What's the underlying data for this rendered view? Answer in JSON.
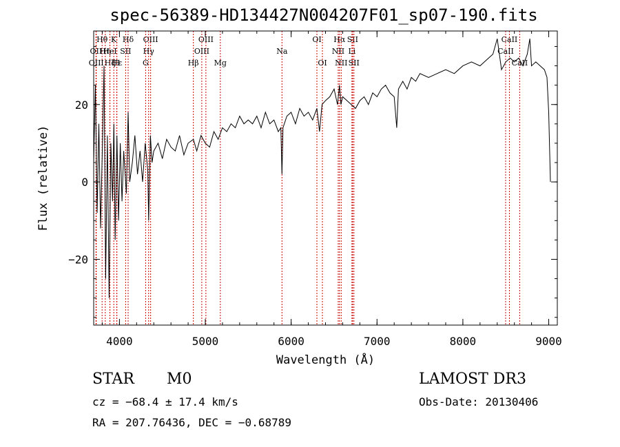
{
  "title": "spec-56389-HD134427N004207F01_sp07-190.fits",
  "info": {
    "object_class": "STAR",
    "subclass": "M0",
    "survey": "LAMOST DR3",
    "redshift": "cz = −68.4 ± 17.4 km/s",
    "obs_date": "Obs-Date: 20130406",
    "coords": "RA = 207.76436, DEC =  −0.68789"
  },
  "colors": {
    "spectrum": "#000000",
    "line_marker": "#cc0000",
    "axis": "#000000"
  },
  "chart_data": {
    "type": "line",
    "title": "spec-56389-HD134427N004207F01_sp07-190.fits",
    "xlabel": "Wavelength (Å)",
    "ylabel": "Flux (relative)",
    "xlim": [
      3700,
      9100
    ],
    "ylim": [
      -37,
      39
    ],
    "xticks": [
      4000,
      5000,
      6000,
      7000,
      8000,
      9000
    ],
    "yticks": [
      -20,
      0,
      20
    ],
    "ytick_labels": [
      "−20",
      "0",
      "20"
    ],
    "series": [
      {
        "name": "flux",
        "x": [
          3700,
          3720,
          3740,
          3760,
          3780,
          3800,
          3820,
          3840,
          3860,
          3880,
          3900,
          3920,
          3935,
          3950,
          3970,
          3990,
          4010,
          4030,
          4050,
          4080,
          4101,
          4120,
          4150,
          4180,
          4210,
          4240,
          4270,
          4300,
          4330,
          4340,
          4360,
          4380,
          4400,
          4450,
          4500,
          4550,
          4600,
          4650,
          4700,
          4750,
          4800,
          4861,
          4900,
          4950,
          5000,
          5050,
          5100,
          5150,
          5200,
          5250,
          5300,
          5350,
          5400,
          5450,
          5500,
          5550,
          5600,
          5650,
          5700,
          5750,
          5800,
          5850,
          5880,
          5893,
          5905,
          5950,
          6000,
          6050,
          6100,
          6150,
          6200,
          6250,
          6300,
          6330,
          6360,
          6400,
          6450,
          6500,
          6540,
          6563,
          6580,
          6600,
          6650,
          6700,
          6750,
          6800,
          6850,
          6900,
          6950,
          7000,
          7050,
          7100,
          7150,
          7200,
          7230,
          7250,
          7300,
          7350,
          7400,
          7450,
          7500,
          7600,
          7700,
          7800,
          7900,
          8000,
          8100,
          8200,
          8300,
          8350,
          8400,
          8450,
          8500,
          8550,
          8600,
          8650,
          8700,
          8750,
          8780,
          8800,
          8850,
          8900,
          8950,
          8980,
          9000,
          9020
        ],
        "values": [
          5,
          25,
          -8,
          15,
          -12,
          8,
          30,
          -25,
          12,
          -30,
          10,
          -5,
          15,
          -15,
          12,
          -10,
          10,
          -5,
          8,
          -3,
          18,
          0,
          5,
          12,
          2,
          8,
          0,
          10,
          3,
          -10,
          12,
          5,
          8,
          10,
          6,
          11,
          9,
          8,
          12,
          7,
          10,
          11,
          8,
          12,
          10,
          9,
          13,
          11,
          14,
          13,
          15,
          14,
          17,
          15,
          16,
          15,
          17,
          14,
          18,
          15,
          16,
          13,
          14,
          2,
          14,
          17,
          18,
          15,
          19,
          17,
          18,
          16,
          19,
          13,
          20,
          21,
          22,
          24,
          20,
          25,
          20,
          22,
          21,
          20,
          19,
          21,
          22,
          20,
          23,
          22,
          24,
          25,
          23,
          22,
          14,
          24,
          26,
          24,
          27,
          26,
          28,
          27,
          28,
          29,
          28,
          30,
          31,
          30,
          32,
          33,
          37,
          29,
          31,
          32,
          31,
          32,
          30,
          33,
          37,
          30,
          31,
          30,
          29,
          27,
          18,
          0
        ]
      }
    ],
    "lines": [
      {
        "label": "Hθ",
        "wavelength": 3798,
        "row": 0
      },
      {
        "label": "OII",
        "wavelength": 3727,
        "row": 1
      },
      {
        "label": "Hη",
        "wavelength": 3835,
        "row": 1
      },
      {
        "label": "OIII",
        "wavelength": 3730,
        "row": 2
      },
      {
        "label": "Hζ",
        "wavelength": 3889,
        "row": 2
      },
      {
        "label": "K",
        "wavelength": 3934,
        "row": 0
      },
      {
        "label": "HeI",
        "wavelength": 3889,
        "row": 1
      },
      {
        "label": "Hε",
        "wavelength": 3970,
        "row": 2
      },
      {
        "label": "H",
        "wavelength": 3969,
        "row": 2
      },
      {
        "label": "Hδ",
        "wavelength": 4101,
        "row": 0
      },
      {
        "label": "SII",
        "wavelength": 4072,
        "row": 1
      },
      {
        "label": "OIII",
        "wavelength": 4363,
        "row": 0
      },
      {
        "label": "Hγ",
        "wavelength": 4340,
        "row": 1
      },
      {
        "label": "G",
        "wavelength": 4305,
        "row": 2
      },
      {
        "label": "Hβ",
        "wavelength": 4861,
        "row": 2
      },
      {
        "label": "OIII",
        "wavelength": 5007,
        "row": 0
      },
      {
        "label": "OIII",
        "wavelength": 4959,
        "row": 1
      },
      {
        "label": "Mg",
        "wavelength": 5175,
        "row": 2
      },
      {
        "label": "Na",
        "wavelength": 5893,
        "row": 1
      },
      {
        "label": "OI",
        "wavelength": 6300,
        "row": 0
      },
      {
        "label": "OI",
        "wavelength": 6364,
        "row": 2
      },
      {
        "label": "Hα",
        "wavelength": 6563,
        "row": 0
      },
      {
        "label": "NII",
        "wavelength": 6548,
        "row": 1
      },
      {
        "label": "NII",
        "wavelength": 6583,
        "row": 2
      },
      {
        "label": "SII",
        "wavelength": 6716,
        "row": 0
      },
      {
        "label": "Li",
        "wavelength": 6708,
        "row": 1
      },
      {
        "label": "SII",
        "wavelength": 6731,
        "row": 2
      },
      {
        "label": "CaII",
        "wavelength": 8542,
        "row": 0
      },
      {
        "label": "CaII",
        "wavelength": 8498,
        "row": 1
      },
      {
        "label": "CaII",
        "wavelength": 8662,
        "row": 2
      }
    ]
  }
}
